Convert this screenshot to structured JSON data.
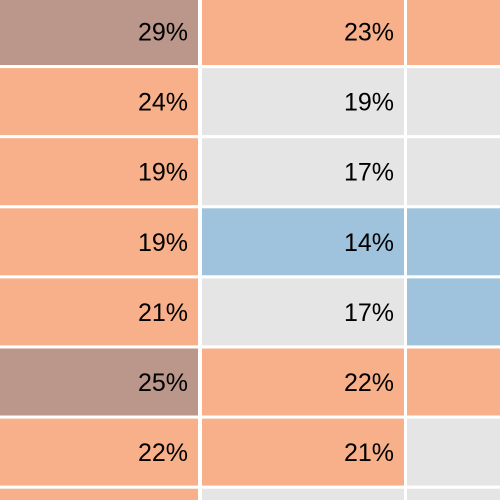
{
  "chart_data": {
    "type": "heatmap",
    "title": "",
    "xlabel": "",
    "ylabel": "",
    "grid": true,
    "columns": [
      {
        "values": [
          "29%",
          "24%",
          "19%",
          "19%",
          "21%",
          "25%",
          "22%",
          ""
        ],
        "fills": [
          "#bb968a",
          "#f7b08a",
          "#f7b08a",
          "#f7b08a",
          "#f7b08a",
          "#bb968a",
          "#f7b08a",
          "#f7b08a"
        ]
      },
      {
        "values": [
          "23%",
          "19%",
          "17%",
          "14%",
          "17%",
          "22%",
          "21%",
          ""
        ],
        "fills": [
          "#f7b08a",
          "#e5e5e5",
          "#e5e5e5",
          "#9fc3dc",
          "#e5e5e5",
          "#f7b08a",
          "#f7b08a",
          "#e5e5e5"
        ]
      },
      {
        "values": [
          "",
          "",
          "",
          "",
          "",
          "",
          "",
          ""
        ],
        "fills": [
          "#f7b08a",
          "#e5e5e5",
          "#e5e5e5",
          "#9fc3dc",
          "#9fc3dc",
          "#f7b08a",
          "#e5e5e5",
          "#e5e5e5"
        ]
      }
    ]
  }
}
